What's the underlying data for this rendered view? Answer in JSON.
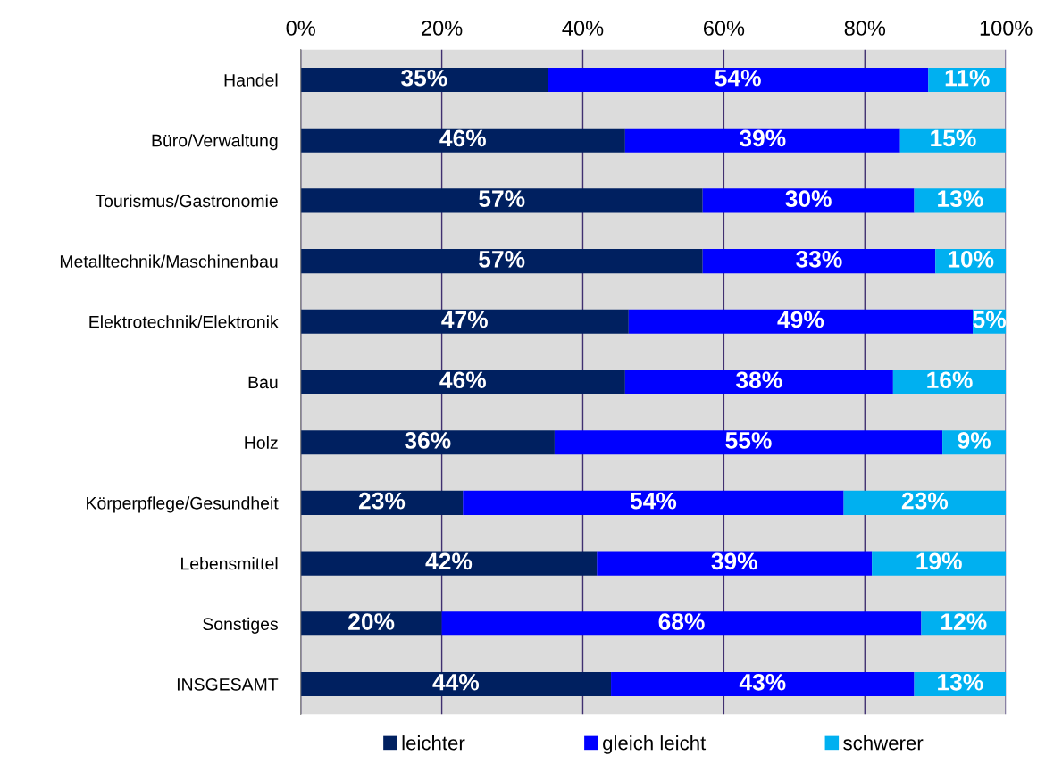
{
  "chart_data": {
    "type": "bar",
    "orientation": "horizontal",
    "stacked": true,
    "categories": [
      "Handel",
      "Büro/Verwaltung",
      "Tourismus/Gastronomie",
      "Metalltechnik/Maschinenbau",
      "Elektrotechnik/Elektronik",
      "Bau",
      "Holz",
      "Körperpflege/Gesundheit",
      "Lebensmittel",
      "Sonstiges",
      "INSGESAMT"
    ],
    "series": [
      {
        "name": "leichter",
        "color": "#002060",
        "values": [
          35,
          46,
          57,
          57,
          46.5,
          46,
          36,
          23,
          42,
          20,
          44
        ]
      },
      {
        "name": "gleich leicht",
        "color": "#0000ff",
        "values": [
          54,
          39,
          30,
          33,
          48.8,
          38,
          55,
          54,
          39,
          68,
          43
        ]
      },
      {
        "name": "schwerer",
        "color": "#00b0f0",
        "values": [
          11,
          15,
          13,
          10,
          4.7,
          16,
          9,
          23,
          19,
          12,
          13
        ]
      }
    ],
    "xlim": [
      0,
      100
    ],
    "xticks": [
      {
        "value": 0,
        "label": "0%"
      },
      {
        "value": 20,
        "label": "20%"
      },
      {
        "value": 40,
        "label": "40%"
      },
      {
        "value": 60,
        "label": "60%"
      },
      {
        "value": 80,
        "label": "80%"
      },
      {
        "value": 100,
        "label": "100%"
      }
    ],
    "grid": "x",
    "legend": "bottom",
    "value_labels": [
      [
        "35%",
        "46%",
        "57%",
        "57%",
        "47%",
        "46%",
        "36%",
        "23%",
        "42%",
        "20%",
        "44%"
      ],
      [
        "54%",
        "39%",
        "30%",
        "33%",
        "49%",
        "38%",
        "55%",
        "54%",
        "39%",
        "68%",
        "43%"
      ],
      [
        "11%",
        "15%",
        "13%",
        "10%",
        "5%",
        "16%",
        "9%",
        "23%",
        "19%",
        "12%",
        "13%"
      ]
    ]
  }
}
